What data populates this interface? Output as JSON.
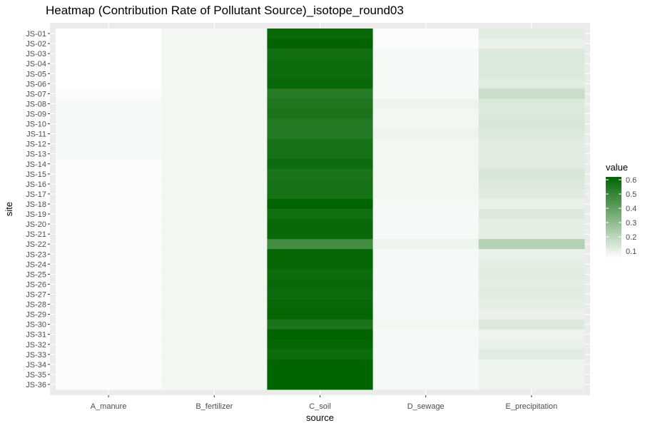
{
  "chart_data": {
    "type": "heatmap",
    "title": "Heatmap (Contribution Rate of Pollutant Source)_isotope_round03",
    "xlabel": "source",
    "ylabel": "site",
    "x_categories": [
      "A_manure",
      "B_fertilizer",
      "C_soil",
      "D_sewage",
      "E_precipitation"
    ],
    "y_categories": [
      "JS-01",
      "JS-02",
      "JS-03",
      "JS-04",
      "JS-05",
      "JS-06",
      "JS-07",
      "JS-08",
      "JS-09",
      "JS-10",
      "JS-11",
      "JS-12",
      "JS-13",
      "JS-14",
      "JS-15",
      "JS-16",
      "JS-17",
      "JS-18",
      "JS-19",
      "JS-20",
      "JS-21",
      "JS-22",
      "JS-23",
      "JS-24",
      "JS-25",
      "JS-26",
      "JS-27",
      "JS-28",
      "JS-29",
      "JS-30",
      "JS-31",
      "JS-32",
      "JS-33",
      "JS-34",
      "JS-35",
      "JS-36"
    ],
    "values": [
      [
        0.05,
        0.08,
        0.6,
        0.06,
        0.12
      ],
      [
        0.05,
        0.08,
        0.62,
        0.06,
        0.1
      ],
      [
        0.05,
        0.08,
        0.58,
        0.07,
        0.13
      ],
      [
        0.05,
        0.08,
        0.59,
        0.07,
        0.13
      ],
      [
        0.05,
        0.08,
        0.59,
        0.07,
        0.13
      ],
      [
        0.05,
        0.08,
        0.6,
        0.07,
        0.12
      ],
      [
        0.06,
        0.08,
        0.53,
        0.07,
        0.17
      ],
      [
        0.07,
        0.08,
        0.55,
        0.09,
        0.13
      ],
      [
        0.07,
        0.08,
        0.56,
        0.08,
        0.13
      ],
      [
        0.07,
        0.08,
        0.54,
        0.08,
        0.14
      ],
      [
        0.07,
        0.08,
        0.54,
        0.09,
        0.13
      ],
      [
        0.07,
        0.08,
        0.57,
        0.08,
        0.12
      ],
      [
        0.07,
        0.08,
        0.57,
        0.08,
        0.12
      ],
      [
        0.06,
        0.08,
        0.59,
        0.08,
        0.12
      ],
      [
        0.06,
        0.08,
        0.56,
        0.08,
        0.14
      ],
      [
        0.06,
        0.08,
        0.57,
        0.08,
        0.13
      ],
      [
        0.06,
        0.08,
        0.57,
        0.08,
        0.12
      ],
      [
        0.06,
        0.08,
        0.62,
        0.07,
        0.1
      ],
      [
        0.06,
        0.08,
        0.58,
        0.07,
        0.13
      ],
      [
        0.06,
        0.08,
        0.6,
        0.07,
        0.11
      ],
      [
        0.06,
        0.08,
        0.6,
        0.07,
        0.11
      ],
      [
        0.06,
        0.08,
        0.47,
        0.09,
        0.22
      ],
      [
        0.06,
        0.08,
        0.61,
        0.07,
        0.1
      ],
      [
        0.06,
        0.08,
        0.61,
        0.07,
        0.11
      ],
      [
        0.06,
        0.08,
        0.59,
        0.07,
        0.12
      ],
      [
        0.06,
        0.08,
        0.6,
        0.07,
        0.11
      ],
      [
        0.06,
        0.08,
        0.59,
        0.07,
        0.12
      ],
      [
        0.06,
        0.08,
        0.6,
        0.07,
        0.11
      ],
      [
        0.06,
        0.08,
        0.61,
        0.07,
        0.1
      ],
      [
        0.06,
        0.08,
        0.56,
        0.08,
        0.13
      ],
      [
        0.06,
        0.08,
        0.62,
        0.07,
        0.09
      ],
      [
        0.06,
        0.08,
        0.61,
        0.07,
        0.1
      ],
      [
        0.06,
        0.08,
        0.59,
        0.07,
        0.12
      ],
      [
        0.06,
        0.08,
        0.62,
        0.07,
        0.09
      ],
      [
        0.06,
        0.08,
        0.62,
        0.07,
        0.09
      ],
      [
        0.06,
        0.08,
        0.62,
        0.07,
        0.09
      ]
    ],
    "legend": {
      "title": "value",
      "position": "right",
      "range": [
        0.05,
        0.62
      ],
      "ticks": [
        0.1,
        0.2,
        0.3,
        0.4,
        0.5,
        0.6
      ],
      "tick_labels": [
        "0.1",
        "0.2",
        "0.3",
        "0.4",
        "0.5",
        "0.6"
      ],
      "low_color": "#ffffff",
      "high_color": "#006400"
    },
    "panel_background": "#ebebeb",
    "grid": true
  }
}
